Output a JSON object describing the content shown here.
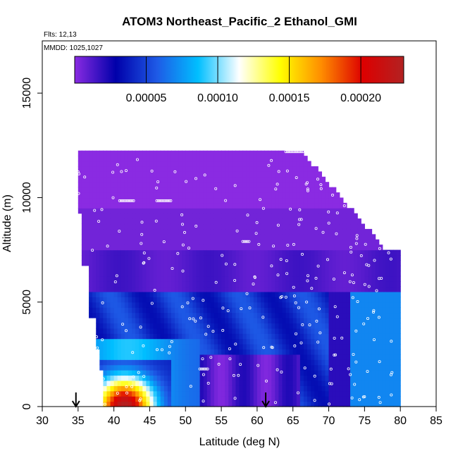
{
  "chart_data": {
    "type": "heatmap",
    "title": "ATOM3 Northeast_Pacific_2 Ethanol_GMI",
    "subtitle_flights": "Flts: 12,13",
    "subtitle_dates": "MMDD: 1025,1027",
    "xlabel": "Latitude (deg N)",
    "ylabel": "Altitude (m)",
    "xlim": [
      30,
      85
    ],
    "ylim": [
      0,
      17500
    ],
    "x_ticks": [
      "30",
      "35",
      "40",
      "45",
      "50",
      "55",
      "60",
      "65",
      "70",
      "75",
      "80",
      "85"
    ],
    "y_ticks": [
      "0",
      "5000",
      "10000",
      "15000"
    ],
    "colorbar": {
      "range": [
        0,
        0.00023
      ],
      "ticks": [
        "0.00005",
        "0.00010",
        "0.00015",
        "0.00020"
      ],
      "tick_values": [
        5e-05,
        0.0001,
        0.00015,
        0.0002
      ],
      "colors": [
        "#8a2be2",
        "#0000aa",
        "#1e5ae6",
        "#00bfff",
        "#ffffff",
        "#ffff00",
        "#ff8c00",
        "#dd0000",
        "#b22222"
      ]
    },
    "arrow_latitudes": [
      34.7,
      61.2
    ],
    "field": {
      "altitude_levels": [
        0,
        1000,
        2000,
        3000,
        4000,
        5000,
        6000,
        7000,
        8000,
        9000,
        10000,
        11000,
        12000
      ],
      "latitude_bins": [
        34,
        36,
        38,
        40,
        42,
        44,
        46,
        48,
        50,
        52,
        54,
        56,
        58,
        60,
        62,
        64,
        66,
        68,
        70,
        72,
        74,
        76,
        78,
        80
      ]
    }
  }
}
